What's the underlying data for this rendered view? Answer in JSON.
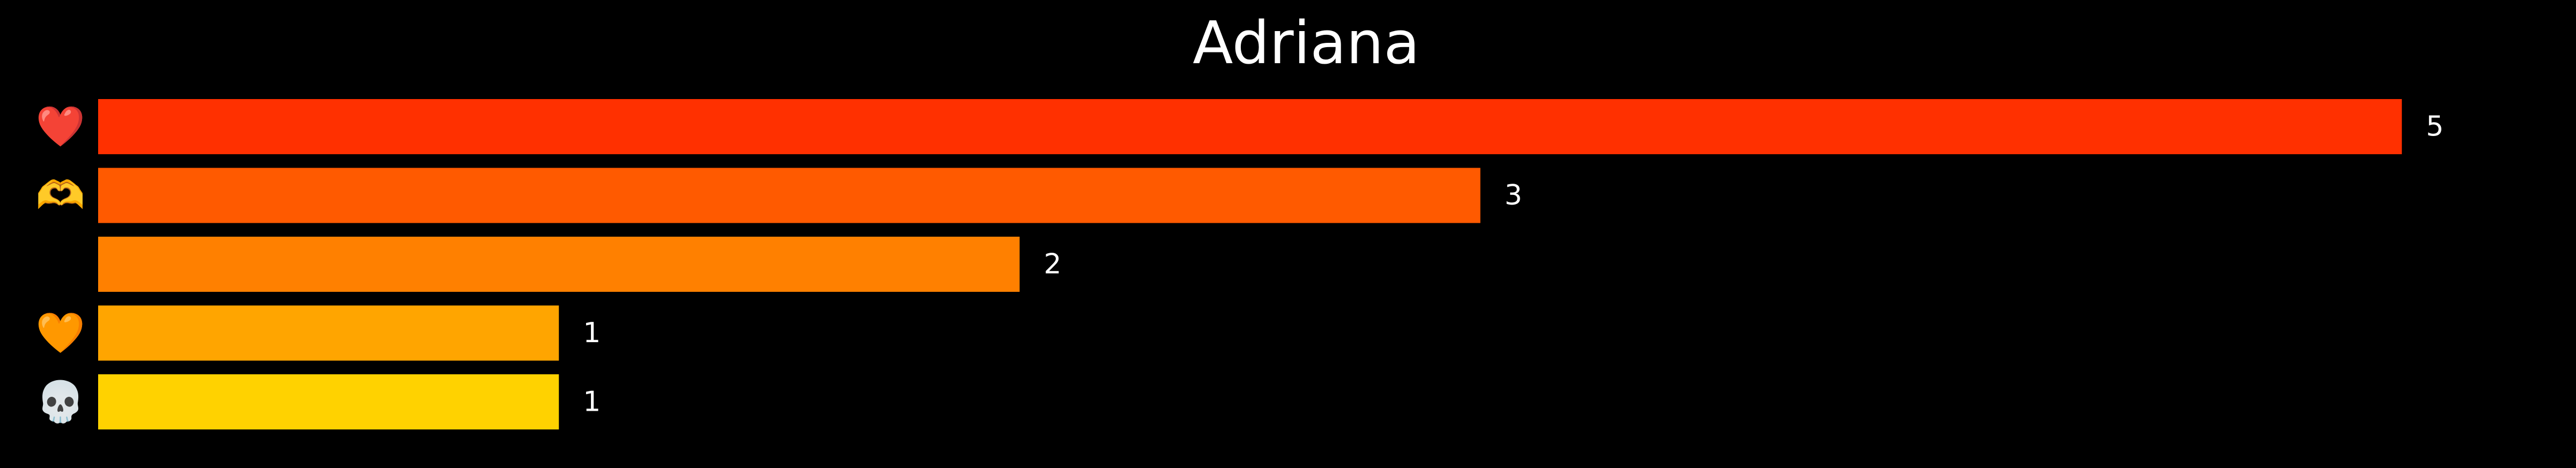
{
  "chart_data": {
    "type": "bar",
    "orientation": "horizontal",
    "title": "Adriana",
    "categories": [
      "❤️",
      "🫶",
      "😔",
      "🧡",
      "💀"
    ],
    "category_icons": [
      "red-heart-icon",
      "heart-hands-icon",
      "pensive-face-icon",
      "orange-heart-icon",
      "skull-icon"
    ],
    "values": [
      5,
      3,
      2,
      1,
      1
    ],
    "colors": [
      "#ff3000",
      "#ff5a00",
      "#ff8000",
      "#ffa500",
      "#ffd200"
    ],
    "xlim": [
      0,
      5.3
    ],
    "grid": false,
    "legend": "none",
    "background": "#000000",
    "text_color": "#ffffff"
  }
}
